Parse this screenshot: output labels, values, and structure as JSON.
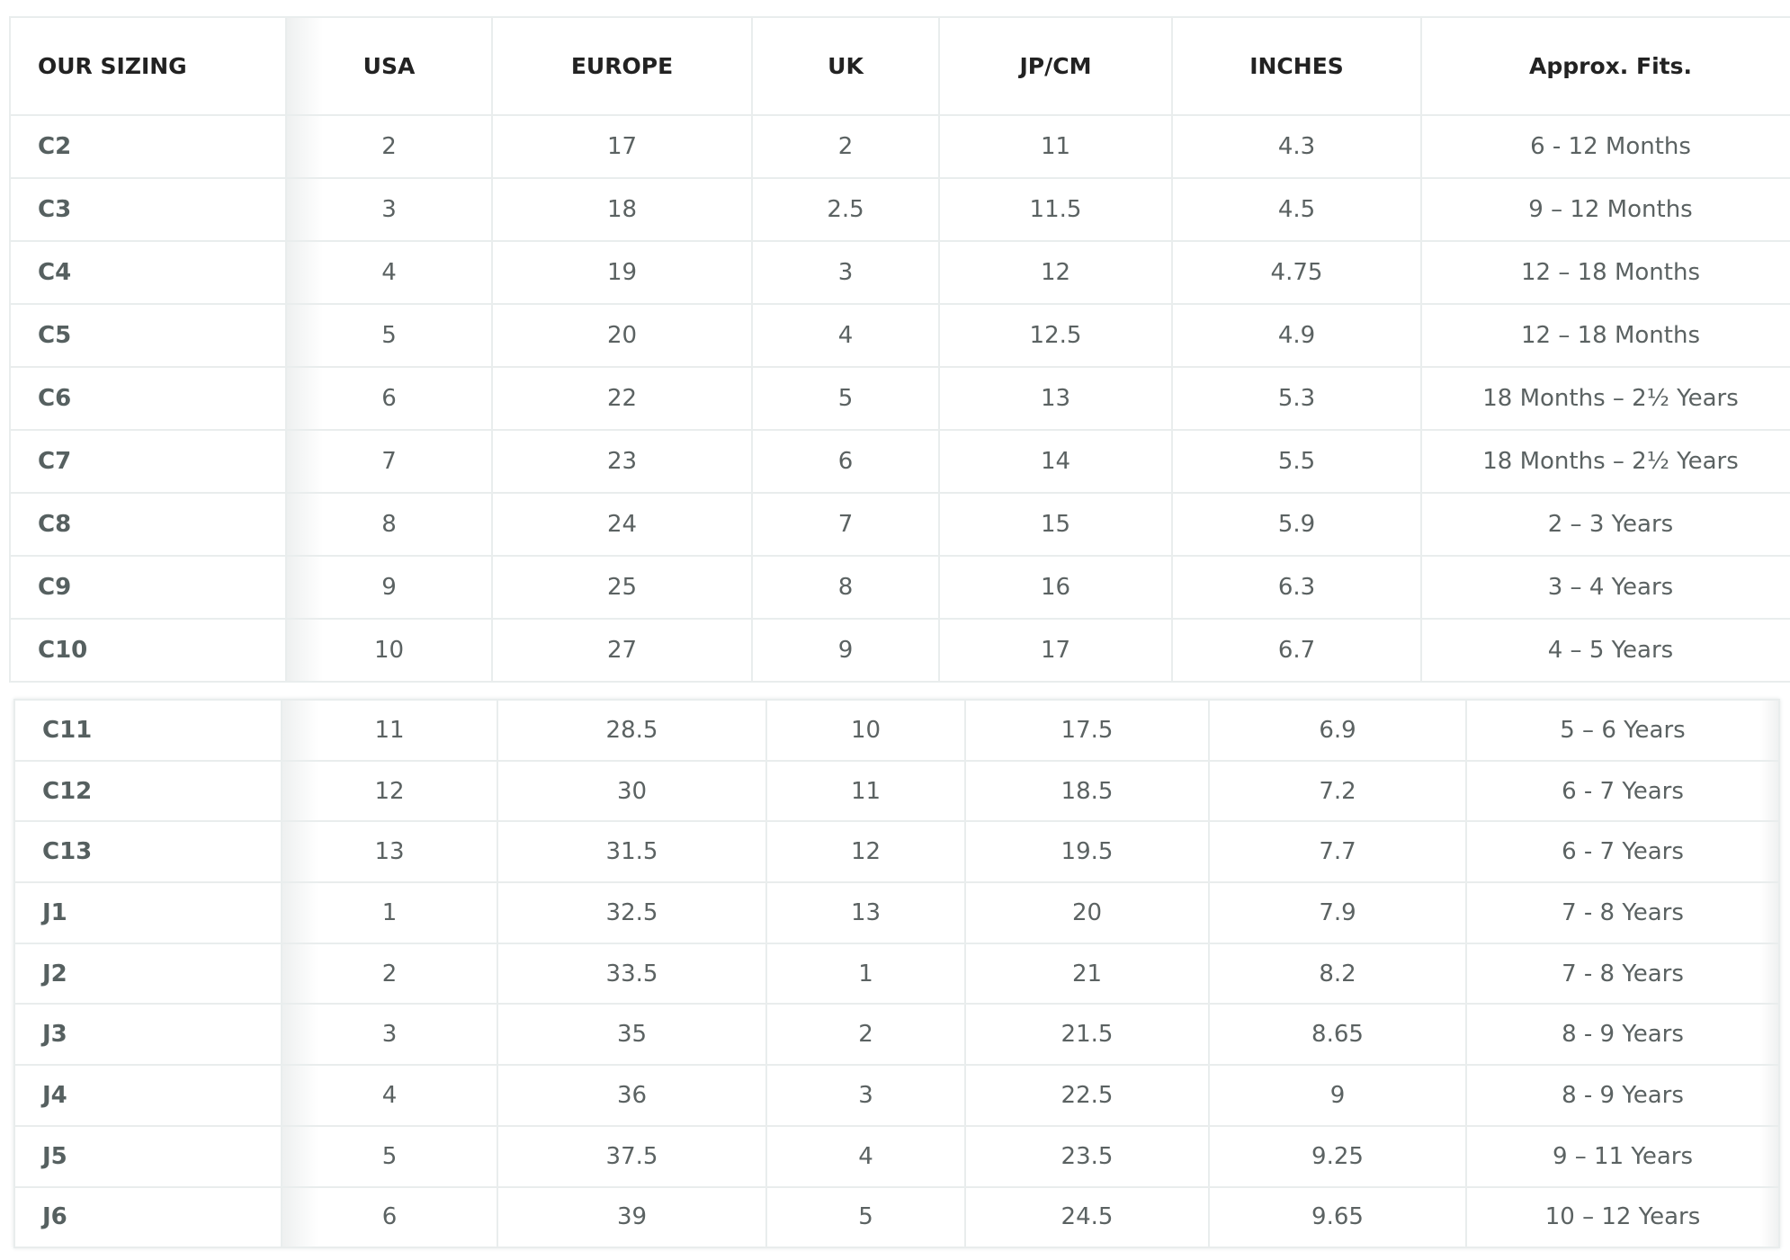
{
  "headers": [
    "OUR SIZING",
    "USA",
    "EUROPE",
    "UK",
    "JP/CM",
    "INCHES",
    "Approx. Fits."
  ],
  "table1": [
    [
      "C2",
      "2",
      "17",
      "2",
      "11",
      "4.3",
      "6 - 12 Months"
    ],
    [
      "C3",
      "3",
      "18",
      "2.5",
      "11.5",
      "4.5",
      "9 – 12 Months"
    ],
    [
      "C4",
      "4",
      "19",
      "3",
      "12",
      "4.75",
      "12 – 18 Months"
    ],
    [
      "C5",
      "5",
      "20",
      "4",
      "12.5",
      "4.9",
      "12 – 18 Months"
    ],
    [
      "C6",
      "6",
      "22",
      "5",
      "13",
      "5.3",
      "18 Months – 2½ Years"
    ],
    [
      "C7",
      "7",
      "23",
      "6",
      "14",
      "5.5",
      "18 Months – 2½ Years"
    ],
    [
      "C8",
      "8",
      "24",
      "7",
      "15",
      "5.9",
      "2 – 3 Years"
    ],
    [
      "C9",
      "9",
      "25",
      "8",
      "16",
      "6.3",
      "3 – 4 Years"
    ],
    [
      "C10",
      "10",
      "27",
      "9",
      "17",
      "6.7",
      "4 – 5 Years"
    ]
  ],
  "table2": [
    [
      "C11",
      "11",
      "28.5",
      "10",
      "17.5",
      "6.9",
      "5 – 6 Years"
    ],
    [
      "C12",
      "12",
      "30",
      "11",
      "18.5",
      "7.2",
      "6 - 7 Years"
    ],
    [
      "C13",
      "13",
      "31.5",
      "12",
      "19.5",
      "7.7",
      "6 - 7 Years"
    ],
    [
      "J1",
      "1",
      "32.5",
      "13",
      "20",
      "7.9",
      "7 - 8 Years"
    ],
    [
      "J2",
      "2",
      "33.5",
      "1",
      "21",
      "8.2",
      "7 - 8 Years"
    ],
    [
      "J3",
      "3",
      "35",
      "2",
      "21.5",
      "8.65",
      "8 - 9 Years"
    ],
    [
      "J4",
      "4",
      "36",
      "3",
      "22.5",
      "9",
      "8 - 9 Years"
    ],
    [
      "J5",
      "5",
      "37.5",
      "4",
      "23.5",
      "9.25",
      "9 – 11 Years"
    ],
    [
      "J6",
      "6",
      "39",
      "5",
      "24.5",
      "9.65",
      "10 – 12 Years"
    ]
  ]
}
